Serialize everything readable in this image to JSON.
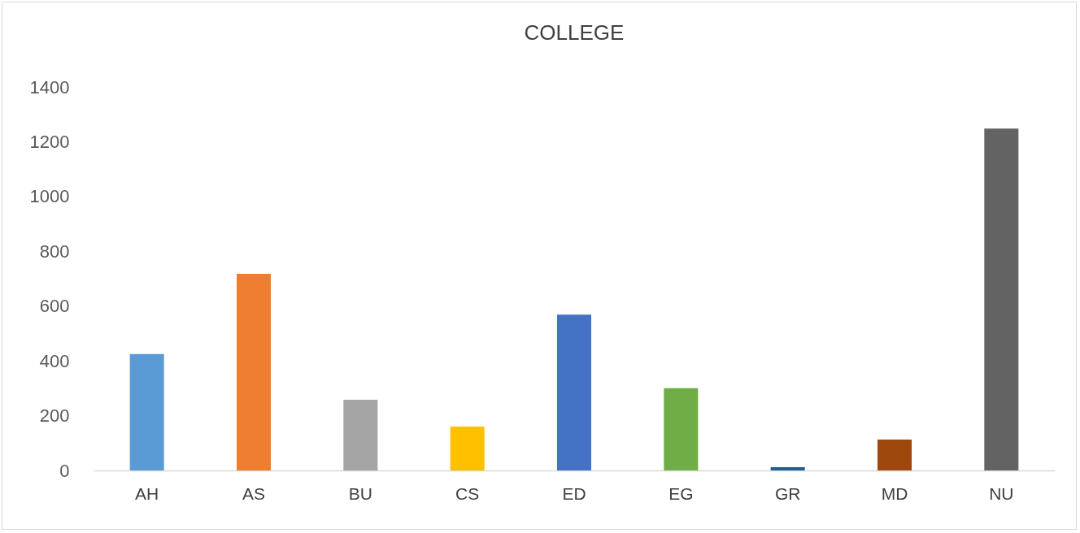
{
  "chart_data": {
    "type": "bar",
    "title": "COLLEGE",
    "categories": [
      "AH",
      "AS",
      "BU",
      "CS",
      "ED",
      "EG",
      "GR",
      "MD",
      "NU"
    ],
    "values": [
      425,
      718,
      258,
      160,
      569,
      300,
      12,
      113,
      1248
    ],
    "colors": [
      "#5b9bd5",
      "#ed7d31",
      "#a5a5a5",
      "#ffc000",
      "#4472c4",
      "#70ad47",
      "#255e91",
      "#9e480e",
      "#636363"
    ],
    "ylim": [
      0,
      1400
    ],
    "yticks": [
      0,
      200,
      400,
      600,
      800,
      1000,
      1200,
      1400
    ],
    "grid": false
  }
}
